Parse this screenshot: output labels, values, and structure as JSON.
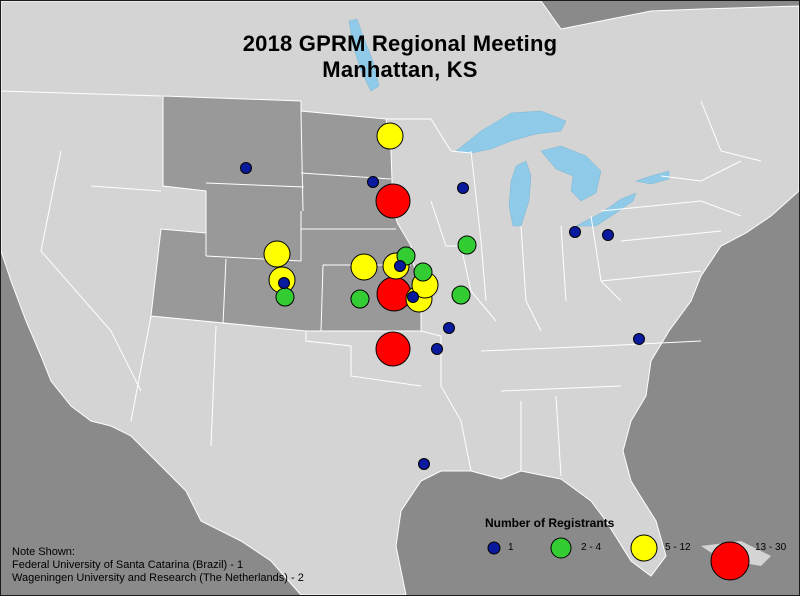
{
  "title": {
    "line1": "2018 GPRM Regional Meeting",
    "line2": "Manhattan, KS"
  },
  "legend": {
    "title": "Number of Registrants",
    "classes": [
      {
        "label": "1",
        "color": "#0a1a9e"
      },
      {
        "label": "2 - 4",
        "color": "#33cc33"
      },
      {
        "label": "5 - 12",
        "color": "#ffff00"
      },
      {
        "label": "13 - 30",
        "color": "#ff0000"
      }
    ]
  },
  "note": {
    "heading": "Note Shown:",
    "lines": [
      "Federal University of Santa Catarina (Brazil) - 1",
      "Wageningen University and Research (The Netherlands) - 2"
    ]
  },
  "colors": {
    "background": "#8a8a8a",
    "land": "#d4d4d4",
    "region_states": "#999999",
    "water": "#8fcbe8",
    "borders": "#ffffff"
  },
  "highlighted_region": [
    "Montana",
    "North Dakota",
    "South Dakota",
    "Wyoming",
    "Nebraska",
    "Utah",
    "Colorado",
    "Kansas"
  ]
}
